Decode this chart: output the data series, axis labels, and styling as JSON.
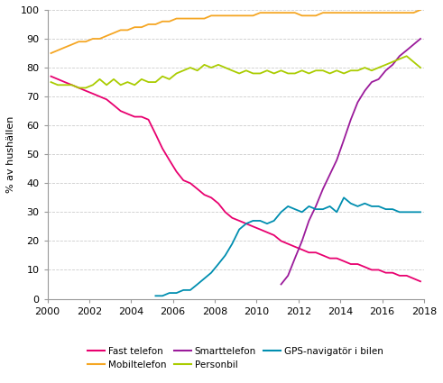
{
  "title": "",
  "ylabel": "% av hushällen",
  "xlim": [
    2000,
    2018
  ],
  "ylim": [
    0,
    100
  ],
  "xticks": [
    2000,
    2002,
    2004,
    2006,
    2008,
    2010,
    2012,
    2014,
    2016,
    2018
  ],
  "yticks": [
    0,
    10,
    20,
    30,
    40,
    50,
    60,
    70,
    80,
    90,
    100
  ],
  "series": {
    "Fast telefon": {
      "color": "#E8006F",
      "data_x": [
        2000.17,
        2000.5,
        2000.83,
        2001.17,
        2001.5,
        2001.83,
        2002.17,
        2002.5,
        2002.83,
        2003.17,
        2003.5,
        2003.83,
        2004.17,
        2004.5,
        2004.83,
        2005.17,
        2005.5,
        2005.83,
        2006.17,
        2006.5,
        2006.83,
        2007.17,
        2007.5,
        2007.83,
        2008.17,
        2008.5,
        2008.83,
        2009.17,
        2009.5,
        2009.83,
        2010.17,
        2010.5,
        2010.83,
        2011.17,
        2011.5,
        2011.83,
        2012.17,
        2012.5,
        2012.83,
        2013.17,
        2013.5,
        2013.83,
        2014.17,
        2014.5,
        2014.83,
        2015.17,
        2015.5,
        2015.83,
        2016.17,
        2016.5,
        2016.83,
        2017.17,
        2017.5,
        2017.83
      ],
      "data_y": [
        77,
        76,
        75,
        74,
        73,
        72,
        71,
        70,
        69,
        67,
        65,
        64,
        63,
        63,
        62,
        57,
        52,
        48,
        44,
        41,
        40,
        38,
        36,
        35,
        33,
        30,
        28,
        27,
        26,
        25,
        24,
        23,
        22,
        20,
        19,
        18,
        17,
        16,
        16,
        15,
        14,
        14,
        13,
        12,
        12,
        11,
        10,
        10,
        9,
        9,
        8,
        8,
        7,
        6
      ]
    },
    "Mobiltelefon": {
      "color": "#F5A623",
      "data_x": [
        2000.17,
        2000.5,
        2000.83,
        2001.17,
        2001.5,
        2001.83,
        2002.17,
        2002.5,
        2002.83,
        2003.17,
        2003.5,
        2003.83,
        2004.17,
        2004.5,
        2004.83,
        2005.17,
        2005.5,
        2005.83,
        2006.17,
        2006.5,
        2006.83,
        2007.17,
        2007.5,
        2007.83,
        2008.17,
        2008.5,
        2008.83,
        2009.17,
        2009.5,
        2009.83,
        2010.17,
        2010.5,
        2010.83,
        2011.17,
        2011.5,
        2011.83,
        2012.17,
        2012.5,
        2012.83,
        2013.17,
        2013.5,
        2013.83,
        2014.17,
        2014.5,
        2014.83,
        2015.17,
        2015.5,
        2015.83,
        2016.17,
        2016.5,
        2016.83,
        2017.17,
        2017.5,
        2017.83
      ],
      "data_y": [
        85,
        86,
        87,
        88,
        89,
        89,
        90,
        90,
        91,
        92,
        93,
        93,
        94,
        94,
        95,
        95,
        96,
        96,
        97,
        97,
        97,
        97,
        97,
        98,
        98,
        98,
        98,
        98,
        98,
        98,
        99,
        99,
        99,
        99,
        99,
        99,
        98,
        98,
        98,
        99,
        99,
        99,
        99,
        99,
        99,
        99,
        99,
        99,
        99,
        99,
        99,
        99,
        99,
        100
      ]
    },
    "Smarttelefon": {
      "color": "#9B1B9B",
      "data_x": [
        2011.17,
        2011.5,
        2011.83,
        2012.17,
        2012.5,
        2012.83,
        2013.17,
        2013.5,
        2013.83,
        2014.17,
        2014.5,
        2014.83,
        2015.17,
        2015.5,
        2015.83,
        2016.17,
        2016.5,
        2016.83,
        2017.17,
        2017.5,
        2017.83
      ],
      "data_y": [
        5,
        8,
        14,
        20,
        27,
        32,
        38,
        43,
        48,
        55,
        62,
        68,
        72,
        75,
        76,
        79,
        81,
        84,
        86,
        88,
        90
      ]
    },
    "Personbil": {
      "color": "#AACC00",
      "data_x": [
        2000.17,
        2000.5,
        2000.83,
        2001.17,
        2001.5,
        2001.83,
        2002.17,
        2002.5,
        2002.83,
        2003.17,
        2003.5,
        2003.83,
        2004.17,
        2004.5,
        2004.83,
        2005.17,
        2005.5,
        2005.83,
        2006.17,
        2006.5,
        2006.83,
        2007.17,
        2007.5,
        2007.83,
        2008.17,
        2008.5,
        2008.83,
        2009.17,
        2009.5,
        2009.83,
        2010.17,
        2010.5,
        2010.83,
        2011.17,
        2011.5,
        2011.83,
        2012.17,
        2012.5,
        2012.83,
        2013.17,
        2013.5,
        2013.83,
        2014.17,
        2014.5,
        2014.83,
        2015.17,
        2015.5,
        2015.83,
        2016.17,
        2016.5,
        2016.83,
        2017.17,
        2017.5,
        2017.83
      ],
      "data_y": [
        75,
        74,
        74,
        74,
        73,
        73,
        74,
        76,
        74,
        76,
        74,
        75,
        74,
        76,
        75,
        75,
        77,
        76,
        78,
        79,
        80,
        79,
        81,
        80,
        81,
        80,
        79,
        78,
        79,
        78,
        78,
        79,
        78,
        79,
        78,
        78,
        79,
        78,
        79,
        79,
        78,
        79,
        78,
        79,
        79,
        80,
        79,
        80,
        81,
        82,
        83,
        84,
        82,
        80
      ]
    },
    "GPS-navigatör i bilen": {
      "color": "#008EB0",
      "data_x": [
        2005.17,
        2005.5,
        2005.83,
        2006.17,
        2006.5,
        2006.83,
        2007.17,
        2007.5,
        2007.83,
        2008.17,
        2008.5,
        2008.83,
        2009.17,
        2009.5,
        2009.83,
        2010.17,
        2010.5,
        2010.83,
        2011.17,
        2011.5,
        2011.83,
        2012.17,
        2012.5,
        2012.83,
        2013.17,
        2013.5,
        2013.83,
        2014.17,
        2014.5,
        2014.83,
        2015.17,
        2015.5,
        2015.83,
        2016.17,
        2016.5,
        2016.83,
        2017.17,
        2017.5,
        2017.83
      ],
      "data_y": [
        1,
        1,
        2,
        2,
        3,
        3,
        5,
        7,
        9,
        12,
        15,
        19,
        24,
        26,
        27,
        27,
        26,
        27,
        30,
        32,
        31,
        30,
        32,
        31,
        31,
        32,
        30,
        35,
        33,
        32,
        33,
        32,
        32,
        31,
        31,
        30,
        30,
        30,
        30
      ]
    }
  },
  "legend_row1": [
    {
      "label": "Fast telefon",
      "color": "#E8006F"
    },
    {
      "label": "Mobiltelefon",
      "color": "#F5A623"
    },
    {
      "label": "Smarttelefon",
      "color": "#9B1B9B"
    }
  ],
  "legend_row2": [
    {
      "label": "Personbil",
      "color": "#AACC00"
    },
    {
      "label": "GPS-navigatör i bilen",
      "color": "#008EB0"
    }
  ],
  "background_color": "#ffffff",
  "grid_color": "#cccccc"
}
